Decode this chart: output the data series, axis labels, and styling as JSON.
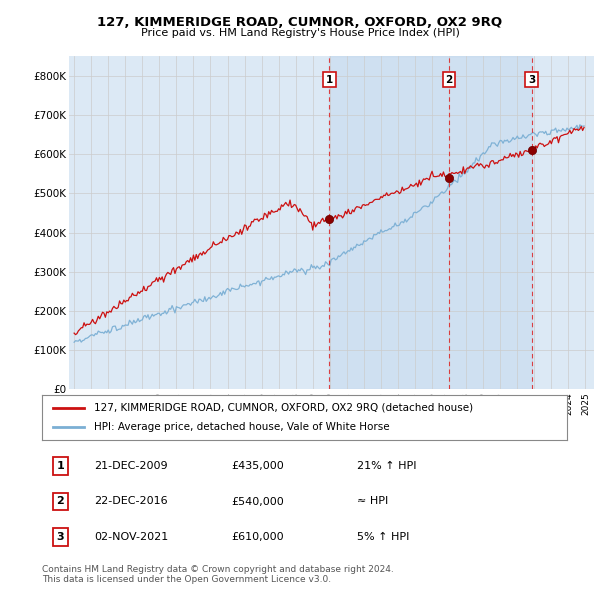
{
  "title1": "127, KIMMERIDGE ROAD, CUMNOR, OXFORD, OX2 9RQ",
  "title2": "Price paid vs. HM Land Registry's House Price Index (HPI)",
  "yticks": [
    0,
    100000,
    200000,
    300000,
    400000,
    500000,
    600000,
    700000,
    800000
  ],
  "ytick_labels": [
    "£0",
    "£100K",
    "£200K",
    "£300K",
    "£400K",
    "£500K",
    "£600K",
    "£700K",
    "£800K"
  ],
  "hpi_color": "#7bafd4",
  "price_color": "#cc1111",
  "sale_color": "#8b0000",
  "vline_color": "#dd2222",
  "grid_color": "#cccccc",
  "bg_color": "#dce9f5",
  "shade_color": "#c8ddf0",
  "sale_years": [
    2009.97,
    2016.98,
    2021.84
  ],
  "sale_prices": [
    435000,
    540000,
    610000
  ],
  "sale_labels": [
    "1",
    "2",
    "3"
  ],
  "legend_entries": [
    "127, KIMMERIDGE ROAD, CUMNOR, OXFORD, OX2 9RQ (detached house)",
    "HPI: Average price, detached house, Vale of White Horse"
  ],
  "table_rows": [
    {
      "num": "1",
      "date": "21-DEC-2009",
      "price": "£435,000",
      "note": "21% ↑ HPI"
    },
    {
      "num": "2",
      "date": "22-DEC-2016",
      "price": "£540,000",
      "note": "≈ HPI"
    },
    {
      "num": "3",
      "date": "02-NOV-2021",
      "price": "£610,000",
      "note": "5% ↑ HPI"
    }
  ],
  "footer1": "Contains HM Land Registry data © Crown copyright and database right 2024.",
  "footer2": "This data is licensed under the Open Government Licence v3.0."
}
